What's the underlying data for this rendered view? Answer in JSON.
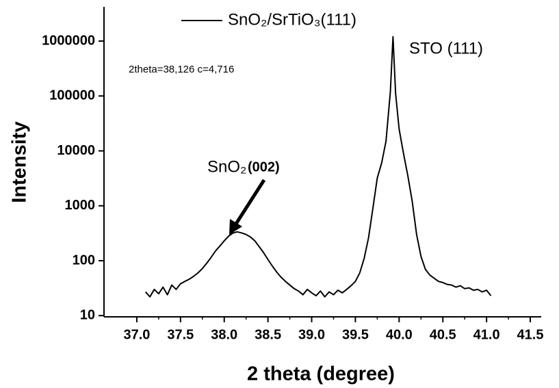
{
  "chart_data": {
    "type": "line",
    "x_label": "2 theta (degree)",
    "y_label": "Intensity",
    "y_scale": "log",
    "xlim": [
      36.625,
      41.625
    ],
    "ylim": [
      9.5,
      4200000
    ],
    "xticks": [
      {
        "value": 37,
        "label": "37.0"
      },
      37.5,
      {
        "value": 38,
        "label": "38.0"
      },
      38.5,
      {
        "value": 39,
        "label": "39.0"
      },
      39.5,
      {
        "value": 40,
        "label": "40.0"
      },
      40.5,
      {
        "value": 41,
        "label": "41.0"
      },
      41.5
    ],
    "yticks": [
      10,
      100,
      1000,
      10000,
      100000,
      1000000
    ],
    "x": [
      37.1,
      37.15,
      37.2,
      37.25,
      37.3,
      37.35,
      37.4,
      37.45,
      37.5,
      37.55,
      37.6,
      37.65,
      37.7,
      37.75,
      37.8,
      37.85,
      37.9,
      37.95,
      38.0,
      38.05,
      38.1,
      38.15,
      38.2,
      38.25,
      38.3,
      38.35,
      38.4,
      38.45,
      38.5,
      38.55,
      38.6,
      38.65,
      38.7,
      38.75,
      38.8,
      38.85,
      38.9,
      38.95,
      39.0,
      39.05,
      39.1,
      39.15,
      39.2,
      39.25,
      39.3,
      39.35,
      39.4,
      39.45,
      39.5,
      39.55,
      39.6,
      39.65,
      39.7,
      39.75,
      39.8,
      39.85,
      39.9,
      39.93,
      39.96,
      40.0,
      40.05,
      40.1,
      40.15,
      40.2,
      40.25,
      40.3,
      40.35,
      40.4,
      40.45,
      40.5,
      40.55,
      40.6,
      40.65,
      40.7,
      40.75,
      40.8,
      40.85,
      40.9,
      40.95,
      41.0,
      41.05
    ],
    "series": [
      {
        "name": "SnO₂/SrTiO₃(111)",
        "color": "#000000",
        "values": [
          27,
          22,
          30,
          25,
          33,
          24,
          36,
          30,
          38,
          42,
          46,
          52,
          60,
          72,
          90,
          115,
          150,
          185,
          230,
          280,
          320,
          335,
          320,
          300,
          270,
          230,
          180,
          140,
          105,
          80,
          62,
          50,
          42,
          36,
          31,
          28,
          24,
          30,
          26,
          23,
          28,
          22,
          27,
          24,
          29,
          26,
          30,
          35,
          42,
          60,
          110,
          260,
          900,
          3200,
          6000,
          15000,
          120000,
          1200000,
          110000,
          25000,
          9000,
          3500,
          1200,
          300,
          120,
          70,
          55,
          48,
          42,
          40,
          37,
          36,
          33,
          35,
          31,
          32,
          29,
          30,
          27,
          29,
          23
        ]
      }
    ],
    "annotations": [
      {
        "text": "2theta=38,126   c=4,716",
        "color": "#ff0000"
      },
      {
        "text": "STO (111)"
      },
      {
        "text": "SnO₂"
      },
      {
        "text": "(002)"
      }
    ]
  }
}
